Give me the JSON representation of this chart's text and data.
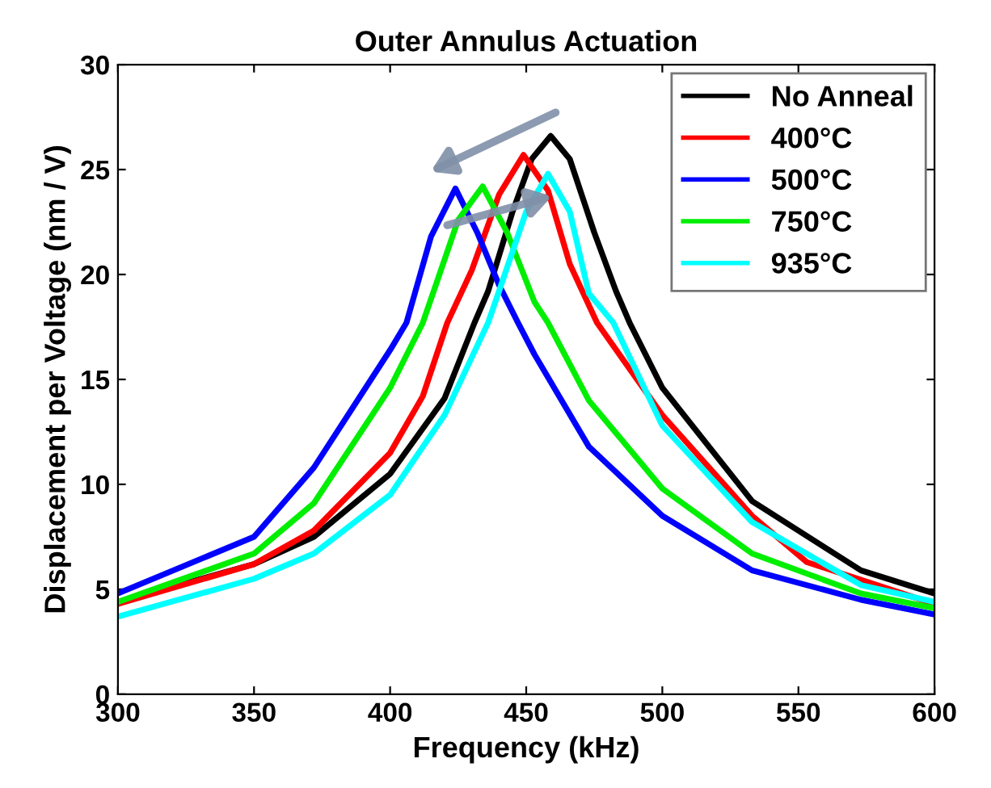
{
  "chart_data": {
    "type": "line",
    "title": "Outer Annulus Actuation",
    "xlabel": "Frequency (kHz)",
    "ylabel": "Displacement per Voltage (nm / V)",
    "xlim": [
      300,
      600
    ],
    "xticks": [
      300,
      350,
      400,
      450,
      500,
      550,
      600
    ],
    "ylim": [
      0,
      30
    ],
    "yticks": [
      0,
      5,
      10,
      15,
      20,
      25,
      30
    ],
    "grid": false,
    "legend": "top right",
    "marker": "none",
    "line_style": "solid",
    "series": [
      {
        "name": "No Anneal",
        "color": "#000000",
        "x": [
          300,
          350,
          372,
          400,
          420,
          431,
          436,
          445,
          452,
          459,
          466,
          475,
          483,
          488,
          500,
          533,
          573,
          600
        ],
        "values": [
          4.4,
          6.2,
          7.5,
          10.5,
          14.1,
          17.7,
          19.2,
          23.0,
          25.5,
          26.6,
          25.5,
          22.0,
          19.2,
          17.7,
          14.6,
          9.2,
          5.9,
          4.8
        ]
      },
      {
        "name": "400°C",
        "color": "#ff0000",
        "x": [
          300,
          350,
          372,
          400,
          412,
          421,
          430,
          440,
          449,
          458,
          466,
          476,
          500,
          533,
          553,
          600
        ],
        "values": [
          4.3,
          6.2,
          7.8,
          11.5,
          14.2,
          17.7,
          20.2,
          23.8,
          25.7,
          24.0,
          20.5,
          17.7,
          13.3,
          8.5,
          6.3,
          4.3
        ]
      },
      {
        "name": "500°C",
        "color": "#0000ff",
        "x": [
          300,
          350,
          372,
          400,
          406,
          415,
          424,
          432,
          440,
          447,
          453,
          473,
          500,
          533,
          573,
          600
        ],
        "values": [
          4.8,
          7.5,
          10.8,
          16.4,
          17.7,
          21.8,
          24.1,
          22.0,
          19.5,
          17.7,
          16.2,
          11.8,
          8.5,
          5.9,
          4.5,
          3.8
        ]
      },
      {
        "name": "750°C",
        "color": "#00ee00",
        "x": [
          300,
          350,
          372,
          400,
          412,
          416,
          425,
          434,
          443,
          453,
          458,
          473,
          500,
          533,
          573,
          600
        ],
        "values": [
          4.4,
          6.7,
          9.1,
          14.6,
          17.7,
          19.2,
          22.6,
          24.2,
          22.0,
          18.7,
          17.7,
          14.0,
          9.8,
          6.7,
          4.8,
          4.1
        ]
      },
      {
        "name": "935°C",
        "color": "#00ffff",
        "x": [
          300,
          350,
          372,
          400,
          420,
          436,
          440,
          450,
          458,
          466,
          473,
          482,
          500,
          533,
          573,
          600
        ],
        "values": [
          3.7,
          5.5,
          6.7,
          9.5,
          13.3,
          17.7,
          19.2,
          23.0,
          24.8,
          23.0,
          19.1,
          17.7,
          12.8,
          8.2,
          5.2,
          4.4
        ]
      }
    ]
  }
}
